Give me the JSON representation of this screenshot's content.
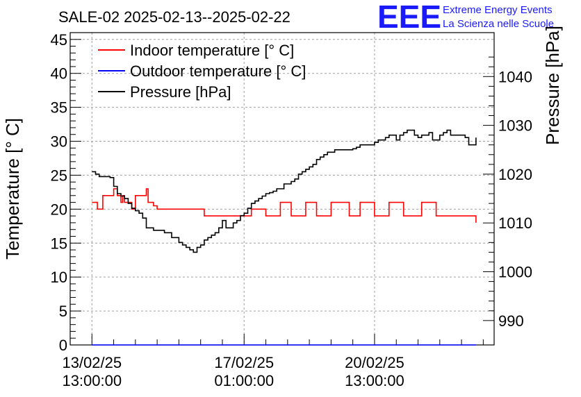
{
  "chart_data": {
    "type": "line",
    "title": "SALE-02 2025-02-13--2025-02-22",
    "ylabel_left": "Temperature [° C]",
    "ylabel_right": "Pressure [hPa]",
    "xlabel": "",
    "ylim_left": [
      0,
      46
    ],
    "ylim_right": [
      985,
      1049
    ],
    "xlim_hours": [
      -12,
      222
    ],
    "yticks_left": [
      0,
      5,
      10,
      15,
      20,
      25,
      30,
      35,
      40,
      45
    ],
    "yticks_right": [
      990,
      1000,
      1010,
      1020,
      1030,
      1040
    ],
    "xticks": [
      {
        "hours": 0,
        "line1": "13/02/25",
        "line2": "13:00:00"
      },
      {
        "hours": 84,
        "line1": "17/02/25",
        "line2": "01:00:00"
      },
      {
        "hours": 156,
        "line1": "20/02/25",
        "line2": "13:00:00"
      }
    ],
    "grid": true,
    "legend_position": "top-left",
    "series": [
      {
        "name": "Indoor temperature [° C]",
        "axis": "left",
        "color": "#ff0000",
        "x_hours": [
          0,
          2,
          3,
          5,
          6,
          8,
          10,
          12,
          14,
          16,
          17,
          18,
          20,
          22,
          24,
          28,
          30,
          31,
          32,
          34,
          36,
          40,
          48,
          56,
          60,
          62,
          70,
          76,
          80,
          84,
          88,
          90,
          96,
          100,
          104,
          106,
          110,
          114,
          118,
          120,
          124,
          126,
          132,
          136,
          142,
          144,
          148,
          150,
          156,
          160,
          164,
          166,
          172,
          178,
          182,
          184,
          190,
          198,
          204,
          206,
          208,
          210,
          212
        ],
        "values": [
          21,
          21,
          20,
          20,
          22,
          22,
          22,
          23,
          22,
          21,
          22,
          21,
          21,
          20,
          22,
          22,
          23,
          21,
          21,
          20.5,
          20,
          20,
          20,
          20,
          20,
          19,
          19,
          19,
          19,
          19,
          20,
          20,
          19,
          19,
          21,
          21,
          19,
          19,
          21,
          21,
          19,
          19,
          21,
          21,
          19,
          19,
          21,
          21,
          19,
          19,
          21,
          21,
          19,
          19,
          21,
          21,
          19,
          19,
          19,
          19,
          19,
          19,
          18
        ]
      },
      {
        "name": "Outdoor temperature [° C]",
        "axis": "left",
        "color": "#0000ff",
        "x_hours": [
          0,
          212
        ],
        "values": [
          0,
          0
        ]
      },
      {
        "name": "Pressure [hPa]",
        "axis": "right",
        "color": "#000000",
        "x_hours": [
          0,
          2,
          4,
          8,
          10,
          12,
          14,
          16,
          18,
          20,
          22,
          24,
          26,
          28,
          30,
          34,
          40,
          44,
          48,
          50,
          52,
          54,
          56,
          58,
          60,
          62,
          64,
          66,
          68,
          70,
          72,
          74,
          76,
          78,
          80,
          82,
          84,
          86,
          88,
          90,
          92,
          94,
          96,
          98,
          100,
          102,
          104,
          106,
          108,
          110,
          112,
          114,
          116,
          118,
          120,
          122,
          124,
          126,
          128,
          130,
          132,
          134,
          136,
          138,
          140,
          142,
          144,
          146,
          148,
          150,
          152,
          154,
          156,
          158,
          160,
          162,
          164,
          166,
          168,
          170,
          172,
          174,
          176,
          178,
          180,
          182,
          184,
          186,
          188,
          190,
          192,
          194,
          196,
          198,
          200,
          202,
          204,
          206,
          208,
          210,
          212
        ],
        "values": [
          1020.5,
          1020,
          1019.5,
          1019.5,
          1019.3,
          1017.5,
          1016,
          1015.5,
          1015,
          1014,
          1013,
          1012.5,
          1012,
          1011,
          1009,
          1008.5,
          1008,
          1007,
          1006,
          1005.5,
          1005,
          1004.5,
          1004,
          1005,
          1005.5,
          1006.5,
          1007,
          1007.5,
          1008,
          1009,
          1010.5,
          1009,
          1009,
          1010,
          1010.5,
          1011.5,
          1012,
          1013,
          1014,
          1014.5,
          1015,
          1015.5,
          1016,
          1016.2,
          1016.5,
          1017,
          1017,
          1018,
          1018,
          1018.5,
          1019,
          1020,
          1020.5,
          1021,
          1021.5,
          1022,
          1023,
          1023.5,
          1024,
          1024.5,
          1024.5,
          1025,
          1025,
          1025,
          1025,
          1025,
          1025.2,
          1025.5,
          1026,
          1026,
          1026,
          1026,
          1026.5,
          1027,
          1027,
          1027.5,
          1028,
          1028,
          1027,
          1028,
          1028.5,
          1029,
          1029,
          1028,
          1027.5,
          1028,
          1028,
          1028.5,
          1027,
          1027,
          1028,
          1028.5,
          1029,
          1028,
          1028,
          1028,
          1028,
          1027.5,
          1026,
          1026,
          1027.5
        ]
      }
    ]
  },
  "branding": {
    "logo": "EEE",
    "line1": "Extreme Energy Events",
    "line2": "La Scienza nelle Scuole",
    "color": "#1a1aff"
  }
}
